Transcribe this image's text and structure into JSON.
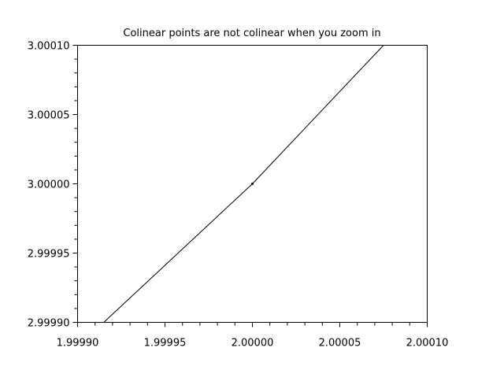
{
  "chart_data": {
    "type": "line",
    "title": "Colinear points are not colinear when you zoom in",
    "xlabel": "",
    "ylabel": "",
    "xlim": [
      1.9999,
      2.0001
    ],
    "ylim": [
      2.9999,
      3.0001
    ],
    "x_ticks": [
      "1.99990",
      "1.99995",
      "2.00000",
      "2.00005",
      "2.00010"
    ],
    "y_ticks": [
      "2.99990",
      "2.99995",
      "3.00000",
      "3.00005",
      "3.00010"
    ],
    "x_tick_values": [
      1.9999,
      1.99995,
      2.0,
      2.00005,
      2.0001
    ],
    "y_tick_values": [
      2.9999,
      2.99995,
      3.0,
      3.00005,
      3.0001
    ],
    "minor_subdivisions": 5,
    "grid": false,
    "series": [
      {
        "x": [
          1.999915,
          2.0,
          2.000075
        ],
        "y": [
          2.9999,
          3.0,
          3.0001
        ],
        "color": "#000000"
      }
    ],
    "marker_points": [
      {
        "x": 2.0,
        "y": 3.0
      }
    ]
  }
}
